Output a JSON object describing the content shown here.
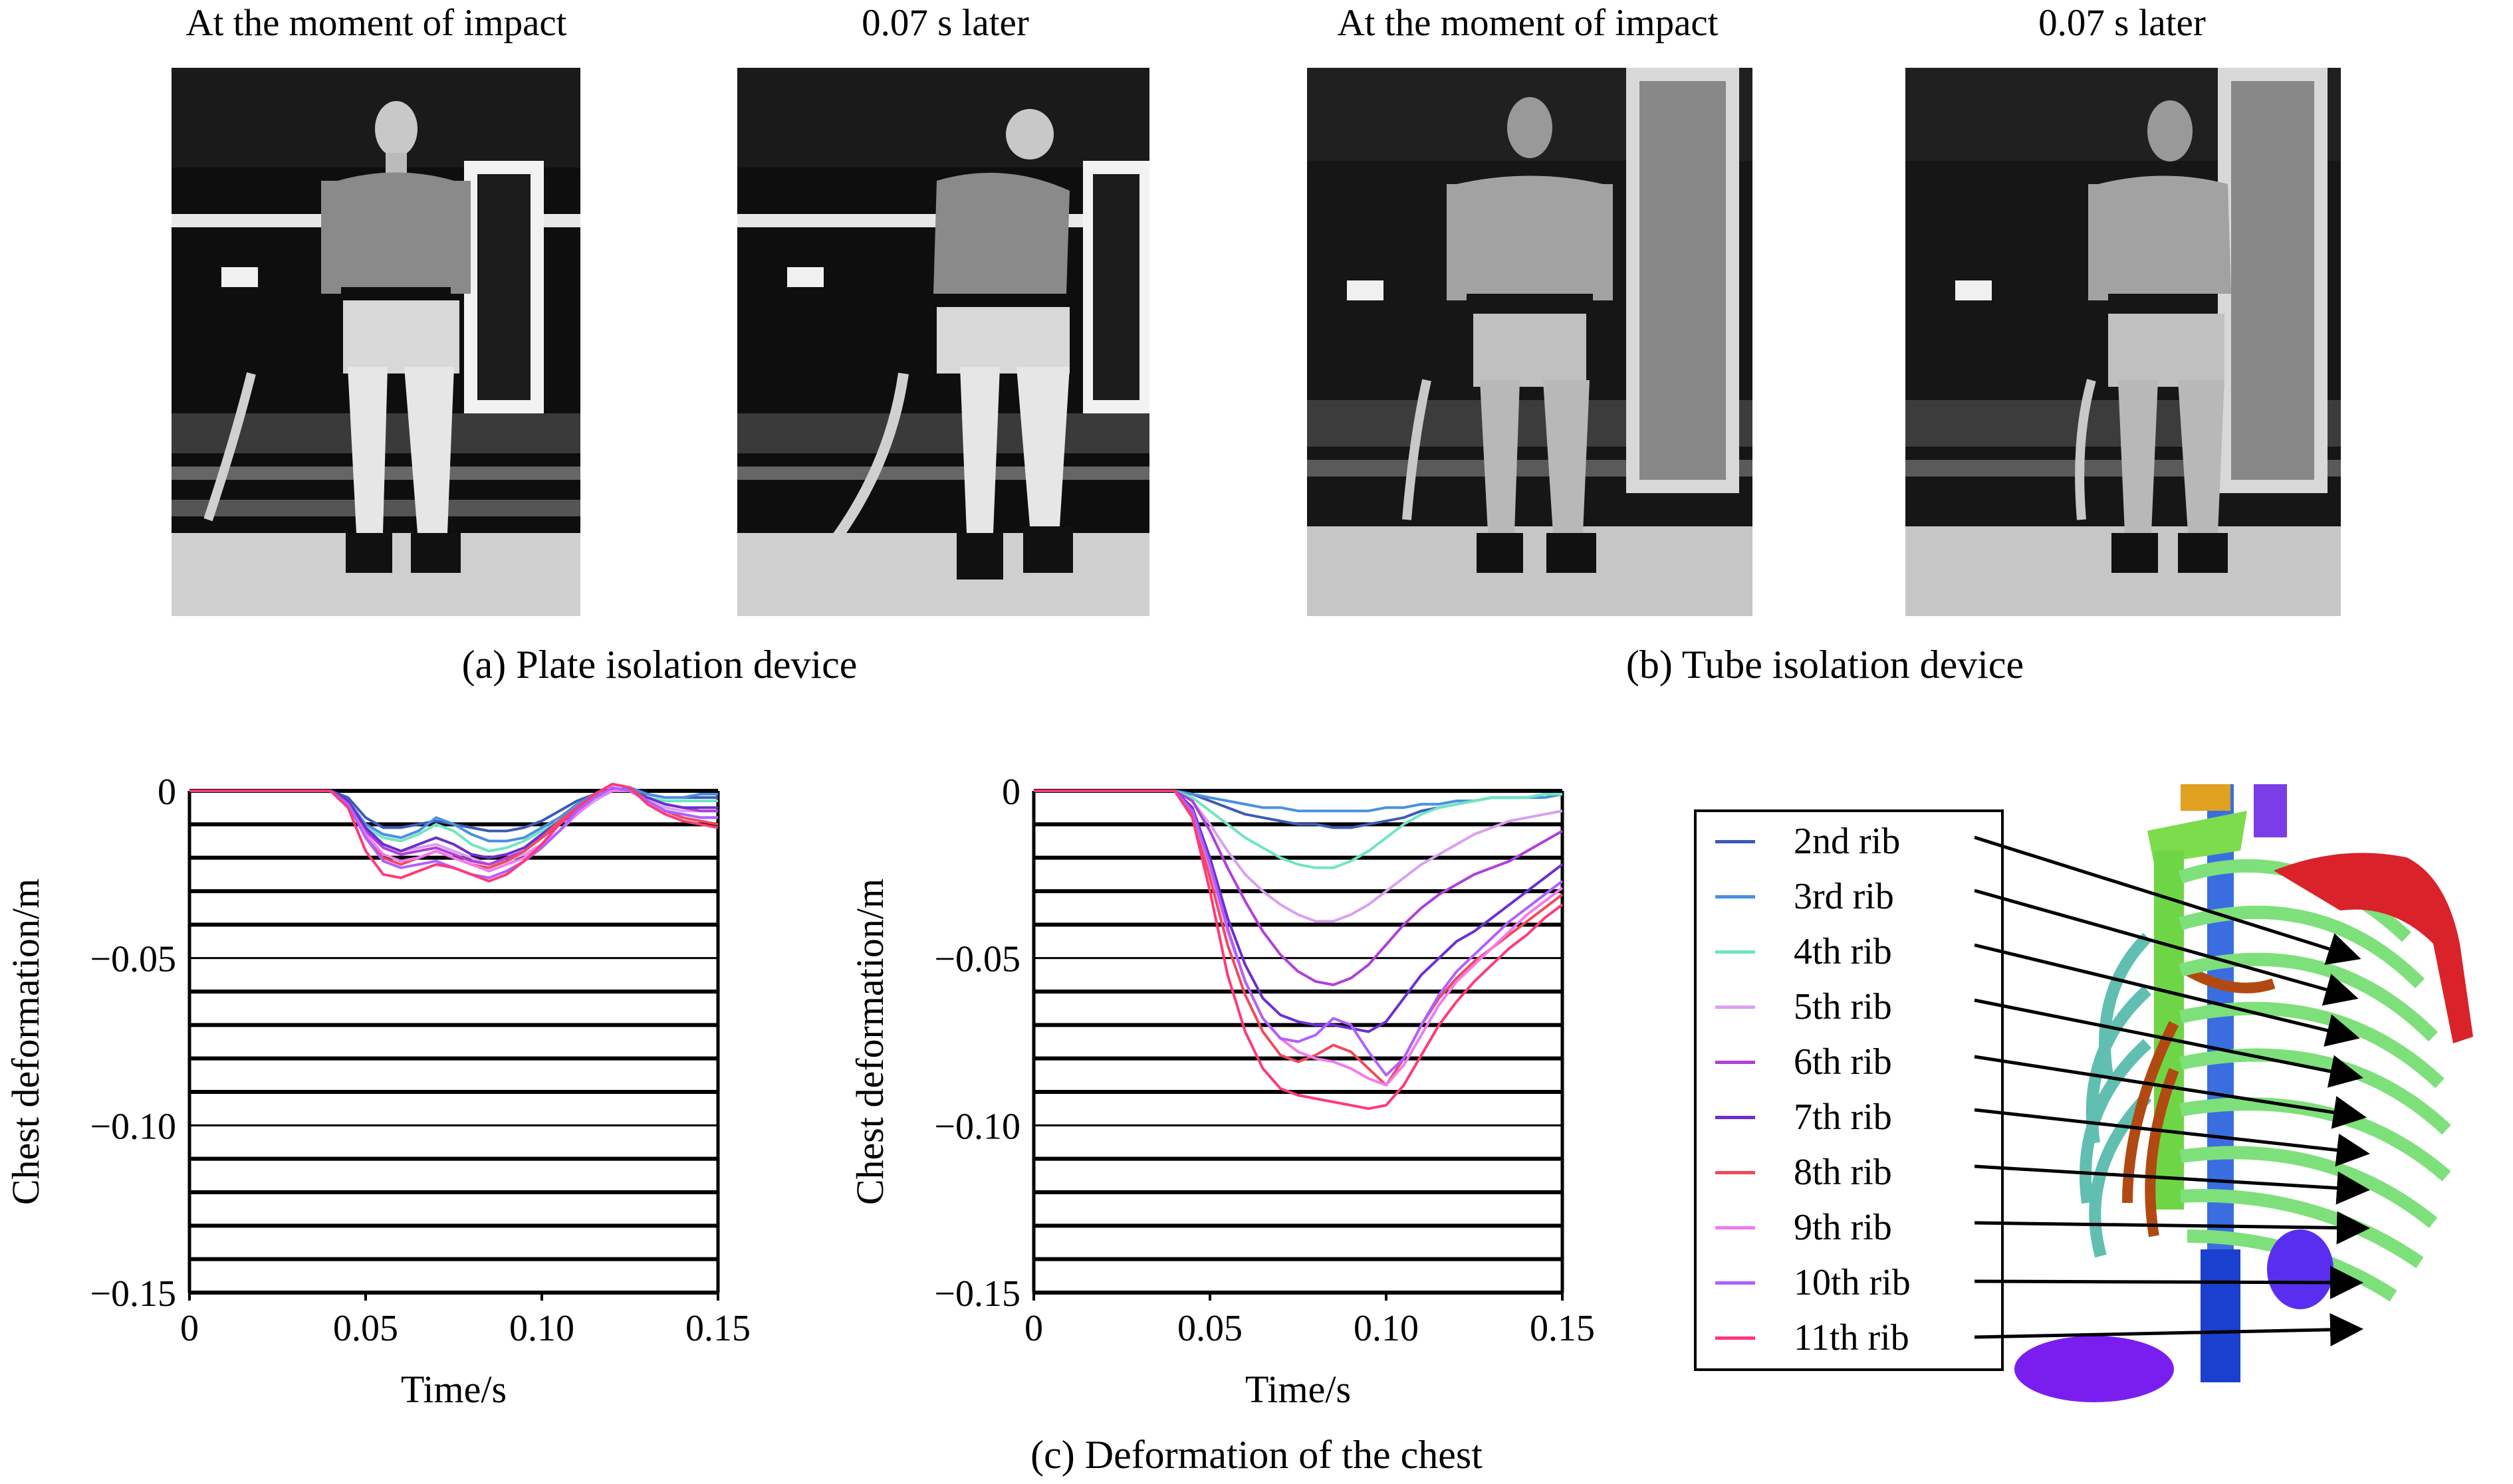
{
  "figure": {
    "photo_titles": [
      "At the moment of impact",
      "0.07 s later",
      "At the moment of impact",
      "0.07 s later"
    ],
    "caption_a": "(a) Plate isolation device",
    "caption_b": "(b) Tube isolation device",
    "caption_c": "(c) Deformation of the chest"
  },
  "colors": {
    "rib2": "#3d5bb5",
    "rib3": "#4a90e2",
    "rib4": "#6fe6c0",
    "rib5": "#d9a0f0",
    "rib6": "#b040d8",
    "rib7": "#6a30d0",
    "rib8": "#f04a5a",
    "rib9": "#f27af0",
    "rib10": "#b060ff",
    "rib11": "#ff3a78"
  },
  "legend": {
    "items": [
      "2nd rib",
      "3rd rib",
      "4th rib",
      "5th rib",
      "6th rib",
      "7th rib",
      "8th rib",
      "9th rib",
      "10th rib",
      "11th rib"
    ]
  },
  "chart_data": [
    {
      "type": "line",
      "ylabel": "Chest deformation/m",
      "xlabel": "Time/s",
      "xlim": [
        0,
        0.15
      ],
      "ylim": [
        -0.15,
        0
      ],
      "xticks": [
        "0",
        "0.05",
        "0.10",
        "0.15"
      ],
      "yticks": [
        "0",
        "−0.05",
        "−0.10",
        "−0.15"
      ],
      "grid": true,
      "x": [
        0,
        0.04,
        0.045,
        0.05,
        0.055,
        0.06,
        0.065,
        0.07,
        0.075,
        0.08,
        0.085,
        0.09,
        0.095,
        0.1,
        0.105,
        0.11,
        0.115,
        0.12,
        0.125,
        0.13,
        0.135,
        0.14,
        0.145,
        0.15
      ],
      "series": [
        {
          "name": "2nd rib",
          "values": [
            0,
            0,
            -0.002,
            -0.008,
            -0.011,
            -0.011,
            -0.01,
            -0.009,
            -0.01,
            -0.011,
            -0.012,
            -0.012,
            -0.011,
            -0.009,
            -0.006,
            -0.003,
            -0.001,
            0,
            0,
            -0.001,
            -0.002,
            -0.002,
            -0.002,
            -0.002
          ]
        },
        {
          "name": "3rd rib",
          "values": [
            0,
            0,
            -0.003,
            -0.01,
            -0.013,
            -0.014,
            -0.012,
            -0.008,
            -0.01,
            -0.013,
            -0.015,
            -0.015,
            -0.014,
            -0.011,
            -0.008,
            -0.004,
            -0.001,
            0,
            0.001,
            -0.001,
            -0.002,
            -0.002,
            -0.001,
            -0.001
          ]
        },
        {
          "name": "4th rib",
          "values": [
            0,
            0,
            -0.003,
            -0.011,
            -0.014,
            -0.015,
            -0.013,
            -0.01,
            -0.012,
            -0.016,
            -0.018,
            -0.017,
            -0.015,
            -0.012,
            -0.009,
            -0.005,
            -0.002,
            0,
            0,
            -0.002,
            -0.003,
            -0.003,
            -0.003,
            -0.003
          ]
        },
        {
          "name": "5th rib",
          "values": [
            0,
            0,
            -0.003,
            -0.012,
            -0.016,
            -0.018,
            -0.017,
            -0.016,
            -0.018,
            -0.02,
            -0.022,
            -0.021,
            -0.019,
            -0.016,
            -0.012,
            -0.007,
            -0.003,
            0,
            0,
            -0.003,
            -0.005,
            -0.006,
            -0.006,
            -0.006
          ]
        },
        {
          "name": "6th rib",
          "values": [
            0,
            0,
            -0.003,
            -0.012,
            -0.017,
            -0.019,
            -0.018,
            -0.017,
            -0.019,
            -0.021,
            -0.022,
            -0.02,
            -0.018,
            -0.014,
            -0.01,
            -0.006,
            -0.002,
            0,
            0,
            -0.002,
            -0.004,
            -0.005,
            -0.006,
            -0.006
          ]
        },
        {
          "name": "7th rib",
          "values": [
            0,
            0,
            -0.003,
            -0.011,
            -0.016,
            -0.018,
            -0.016,
            -0.014,
            -0.016,
            -0.019,
            -0.02,
            -0.019,
            -0.017,
            -0.013,
            -0.009,
            -0.005,
            -0.002,
            0,
            0,
            -0.002,
            -0.004,
            -0.005,
            -0.005,
            -0.005
          ]
        },
        {
          "name": "8th rib",
          "values": [
            0,
            0,
            -0.004,
            -0.014,
            -0.02,
            -0.022,
            -0.02,
            -0.018,
            -0.02,
            -0.022,
            -0.023,
            -0.021,
            -0.018,
            -0.014,
            -0.009,
            -0.005,
            -0.001,
            0.002,
            0.001,
            -0.003,
            -0.006,
            -0.008,
            -0.009,
            -0.01
          ]
        },
        {
          "name": "9th rib",
          "values": [
            0,
            0,
            -0.004,
            -0.013,
            -0.019,
            -0.021,
            -0.02,
            -0.018,
            -0.02,
            -0.022,
            -0.024,
            -0.022,
            -0.02,
            -0.016,
            -0.012,
            -0.007,
            -0.002,
            0,
            0,
            -0.003,
            -0.006,
            -0.007,
            -0.008,
            -0.008
          ]
        },
        {
          "name": "10th rib",
          "values": [
            0,
            0,
            -0.004,
            -0.014,
            -0.021,
            -0.023,
            -0.022,
            -0.021,
            -0.023,
            -0.025,
            -0.026,
            -0.024,
            -0.021,
            -0.017,
            -0.012,
            -0.006,
            -0.002,
            0.001,
            0,
            -0.003,
            -0.006,
            -0.007,
            -0.008,
            -0.008
          ]
        },
        {
          "name": "11th rib",
          "values": [
            0,
            0,
            -0.005,
            -0.018,
            -0.025,
            -0.026,
            -0.024,
            -0.022,
            -0.023,
            -0.025,
            -0.027,
            -0.025,
            -0.021,
            -0.016,
            -0.01,
            -0.005,
            -0.001,
            0.002,
            0.001,
            -0.004,
            -0.007,
            -0.009,
            -0.01,
            -0.011
          ]
        }
      ]
    },
    {
      "type": "line",
      "ylabel": "Chest deformation/m",
      "xlabel": "Time/s",
      "xlim": [
        0,
        0.15
      ],
      "ylim": [
        -0.15,
        0
      ],
      "xticks": [
        "0",
        "0.05",
        "0.10",
        "0.15"
      ],
      "yticks": [
        "0",
        "−0.05",
        "−0.10",
        "−0.15"
      ],
      "grid": true,
      "x": [
        0,
        0.04,
        0.045,
        0.05,
        0.055,
        0.06,
        0.065,
        0.07,
        0.075,
        0.08,
        0.085,
        0.09,
        0.095,
        0.1,
        0.105,
        0.11,
        0.115,
        0.12,
        0.125,
        0.13,
        0.135,
        0.14,
        0.145,
        0.15
      ],
      "series": [
        {
          "name": "2nd rib",
          "values": [
            0,
            0,
            -0.001,
            -0.003,
            -0.005,
            -0.007,
            -0.008,
            -0.009,
            -0.01,
            -0.01,
            -0.011,
            -0.011,
            -0.01,
            -0.009,
            -0.008,
            -0.006,
            -0.005,
            -0.004,
            -0.003,
            -0.002,
            -0.002,
            -0.002,
            -0.001,
            -0.001
          ]
        },
        {
          "name": "3rd rib",
          "values": [
            0,
            0,
            -0.001,
            -0.002,
            -0.003,
            -0.004,
            -0.005,
            -0.005,
            -0.006,
            -0.006,
            -0.006,
            -0.006,
            -0.006,
            -0.005,
            -0.005,
            -0.004,
            -0.004,
            -0.003,
            -0.003,
            -0.002,
            -0.002,
            -0.002,
            -0.002,
            -0.001
          ]
        },
        {
          "name": "4th rib",
          "values": [
            0,
            0,
            -0.002,
            -0.006,
            -0.01,
            -0.014,
            -0.017,
            -0.02,
            -0.022,
            -0.023,
            -0.023,
            -0.021,
            -0.018,
            -0.014,
            -0.01,
            -0.007,
            -0.005,
            -0.004,
            -0.003,
            -0.002,
            -0.002,
            -0.002,
            -0.001,
            -0.001
          ]
        },
        {
          "name": "5th rib",
          "values": [
            0,
            0,
            -0.003,
            -0.01,
            -0.018,
            -0.025,
            -0.03,
            -0.034,
            -0.037,
            -0.039,
            -0.039,
            -0.037,
            -0.034,
            -0.03,
            -0.026,
            -0.022,
            -0.019,
            -0.016,
            -0.013,
            -0.011,
            -0.009,
            -0.008,
            -0.007,
            -0.006
          ]
        },
        {
          "name": "6th rib",
          "values": [
            0,
            0,
            -0.003,
            -0.012,
            -0.023,
            -0.033,
            -0.042,
            -0.049,
            -0.054,
            -0.057,
            -0.058,
            -0.056,
            -0.052,
            -0.046,
            -0.04,
            -0.035,
            -0.031,
            -0.028,
            -0.025,
            -0.023,
            -0.021,
            -0.018,
            -0.015,
            -0.012
          ]
        },
        {
          "name": "7th rib",
          "values": [
            0,
            0,
            -0.005,
            -0.02,
            -0.038,
            -0.052,
            -0.062,
            -0.067,
            -0.069,
            -0.07,
            -0.07,
            -0.071,
            -0.072,
            -0.069,
            -0.062,
            -0.055,
            -0.05,
            -0.045,
            -0.042,
            -0.038,
            -0.034,
            -0.03,
            -0.026,
            -0.022
          ]
        },
        {
          "name": "8th rib",
          "values": [
            0,
            0,
            -0.007,
            -0.026,
            -0.046,
            -0.061,
            -0.072,
            -0.079,
            -0.081,
            -0.079,
            -0.076,
            -0.078,
            -0.083,
            -0.088,
            -0.08,
            -0.07,
            -0.062,
            -0.056,
            -0.051,
            -0.047,
            -0.043,
            -0.039,
            -0.035,
            -0.031
          ]
        },
        {
          "name": "9th rib",
          "values": [
            0,
            0,
            -0.006,
            -0.023,
            -0.042,
            -0.057,
            -0.068,
            -0.074,
            -0.078,
            -0.08,
            -0.081,
            -0.083,
            -0.086,
            -0.088,
            -0.082,
            -0.073,
            -0.064,
            -0.057,
            -0.052,
            -0.047,
            -0.042,
            -0.037,
            -0.033,
            -0.029
          ]
        },
        {
          "name": "10th rib",
          "values": [
            0,
            0,
            -0.006,
            -0.022,
            -0.041,
            -0.057,
            -0.068,
            -0.074,
            -0.075,
            -0.073,
            -0.068,
            -0.07,
            -0.078,
            -0.085,
            -0.08,
            -0.07,
            -0.061,
            -0.054,
            -0.049,
            -0.044,
            -0.039,
            -0.035,
            -0.031,
            -0.027
          ]
        },
        {
          "name": "11th rib",
          "values": [
            0,
            0,
            -0.008,
            -0.03,
            -0.055,
            -0.072,
            -0.083,
            -0.089,
            -0.091,
            -0.092,
            -0.093,
            -0.094,
            -0.095,
            -0.094,
            -0.088,
            -0.079,
            -0.07,
            -0.063,
            -0.057,
            -0.052,
            -0.047,
            -0.043,
            -0.038,
            -0.034
          ]
        }
      ]
    }
  ]
}
